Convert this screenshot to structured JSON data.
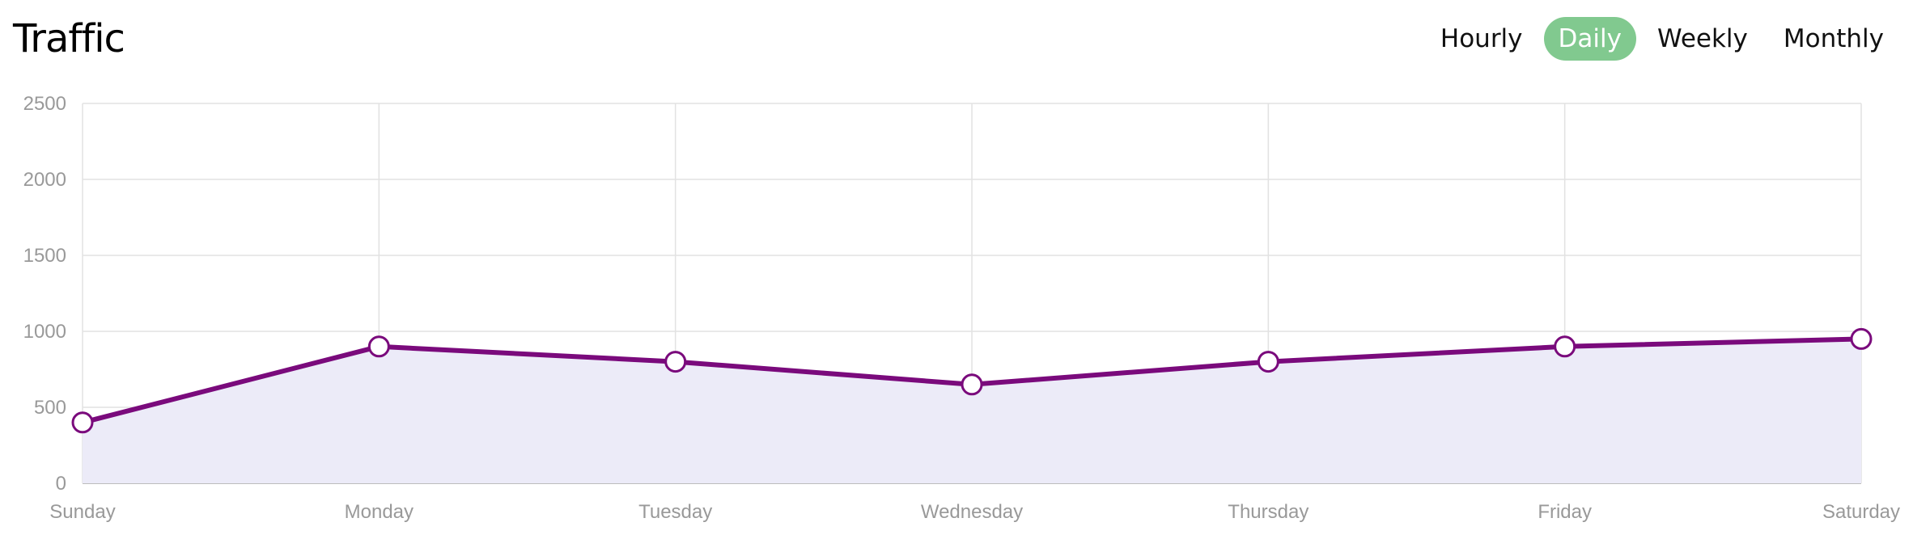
{
  "page": {
    "title": "Traffic"
  },
  "range_tabs": [
    {
      "label": "Hourly",
      "active": false
    },
    {
      "label": "Daily",
      "active": true
    },
    {
      "label": "Weekly",
      "active": false
    },
    {
      "label": "Monthly",
      "active": false
    }
  ],
  "colors": {
    "accent": "#81c98f",
    "line": "#7a0a7c",
    "fill": "#ecebf8",
    "grid": "#e2e2e2",
    "axis_text": "#999999"
  },
  "chart_data": {
    "type": "area",
    "title": "",
    "xlabel": "",
    "ylabel": "",
    "categories": [
      "Sunday",
      "Monday",
      "Tuesday",
      "Wednesday",
      "Thursday",
      "Friday",
      "Saturday"
    ],
    "series": [
      {
        "values": [
          400,
          900,
          800,
          650,
          800,
          900,
          950
        ]
      }
    ],
    "ylim": [
      0,
      2500
    ],
    "yticks": [
      0,
      500,
      1000,
      1500,
      2000,
      2500
    ],
    "grid": true,
    "legend": "none"
  }
}
